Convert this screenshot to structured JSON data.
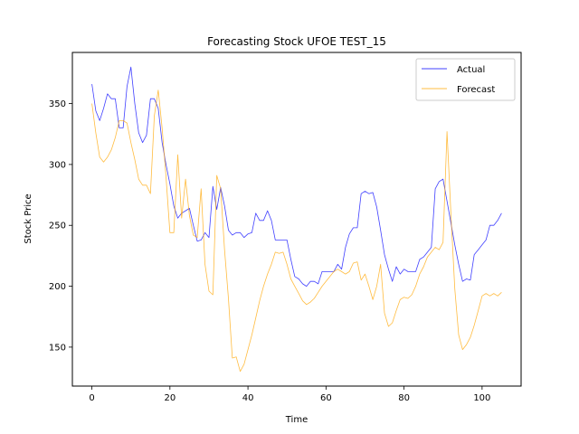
{
  "chart_data": {
    "type": "line",
    "title": "Forecasting Stock UFOE TEST_15",
    "xlabel": "Time",
    "ylabel": "Stock Price",
    "xlim": [
      -5,
      110
    ],
    "ylim": [
      118,
      392
    ],
    "xticks": [
      0,
      20,
      40,
      60,
      80,
      100
    ],
    "yticks": [
      150,
      200,
      250,
      300,
      350
    ],
    "grid": false,
    "legend": "top-right",
    "series": [
      {
        "name": "Actual",
        "color": "#0000ff",
        "x": [
          0,
          1,
          2,
          3,
          4,
          5,
          6,
          7,
          8,
          9,
          10,
          11,
          12,
          13,
          14,
          15,
          16,
          17,
          18,
          19,
          20,
          21,
          22,
          23,
          24,
          25,
          26,
          27,
          28,
          29,
          30,
          31,
          32,
          33,
          34,
          35,
          36,
          37,
          38,
          39,
          40,
          41,
          42,
          43,
          44,
          45,
          46,
          47,
          48,
          49,
          50,
          51,
          52,
          53,
          54,
          55,
          56,
          57,
          58,
          59,
          60,
          61,
          62,
          63,
          64,
          65,
          66,
          67,
          68,
          69,
          70,
          71,
          72,
          73,
          74,
          75,
          76,
          77,
          78,
          79,
          80,
          81,
          82,
          83,
          84,
          85,
          86,
          87,
          88,
          89,
          90,
          91,
          92,
          93,
          94,
          95,
          96,
          97,
          98,
          99,
          100,
          101,
          102,
          103,
          104,
          105
        ],
        "values": [
          366,
          344,
          336,
          346,
          358,
          354,
          354,
          330,
          330,
          364,
          380,
          350,
          326,
          318,
          324,
          354,
          354,
          346,
          318,
          300,
          284,
          266,
          256,
          260,
          262,
          264,
          250,
          237,
          238,
          244,
          240,
          282,
          263,
          281,
          266,
          246,
          242,
          244,
          244,
          240,
          243,
          244,
          260,
          254,
          254,
          262,
          254,
          238,
          238,
          238,
          238,
          222,
          208,
          206,
          202,
          200,
          204,
          204,
          202,
          212,
          212,
          212,
          212,
          218,
          214,
          232,
          243,
          248,
          248,
          276,
          278,
          276,
          277,
          265,
          246,
          226,
          214,
          204,
          216,
          210,
          214,
          212,
          212,
          212,
          222,
          224,
          228,
          232,
          280,
          286,
          288,
          270,
          252,
          234,
          218,
          204,
          206,
          205,
          226,
          230,
          234,
          238,
          250,
          250,
          254,
          260
        ]
      },
      {
        "name": "Forecast",
        "color": "#ffa500",
        "x": [
          0,
          1,
          2,
          3,
          4,
          5,
          6,
          7,
          8,
          9,
          10,
          11,
          12,
          13,
          14,
          15,
          16,
          17,
          18,
          19,
          20,
          21,
          22,
          23,
          24,
          25,
          26,
          27,
          28,
          29,
          30,
          31,
          32,
          33,
          34,
          35,
          36,
          37,
          38,
          39,
          40,
          41,
          42,
          43,
          44,
          45,
          46,
          47,
          48,
          49,
          50,
          51,
          52,
          53,
          54,
          55,
          56,
          57,
          58,
          59,
          60,
          61,
          62,
          63,
          64,
          65,
          66,
          67,
          68,
          69,
          70,
          71,
          72,
          73,
          74,
          75,
          76,
          77,
          78,
          79,
          80,
          81,
          82,
          83,
          84,
          85,
          86,
          87,
          88,
          89,
          90,
          91,
          92,
          93,
          94,
          95,
          96,
          97,
          98,
          99,
          100,
          101,
          102,
          103,
          104,
          105
        ],
        "values": [
          350,
          326,
          306,
          302,
          306,
          312,
          322,
          336,
          336,
          334,
          318,
          304,
          288,
          283,
          283,
          276,
          340,
          361,
          330,
          290,
          244,
          244,
          308,
          256,
          288,
          258,
          242,
          240,
          280,
          218,
          196,
          193,
          291,
          280,
          230,
          190,
          141,
          142,
          130,
          136,
          148,
          160,
          174,
          188,
          200,
          210,
          218,
          228,
          227,
          228,
          218,
          206,
          200,
          194,
          188,
          185,
          187,
          190,
          195,
          200,
          204,
          208,
          212,
          214,
          212,
          210,
          212,
          219,
          220,
          205,
          210,
          200,
          189,
          200,
          218,
          178,
          167,
          170,
          180,
          189,
          191,
          190,
          193,
          200,
          210,
          216,
          224,
          228,
          232,
          230,
          236,
          327,
          260,
          198,
          160,
          148,
          152,
          158,
          168,
          180,
          192,
          194,
          192,
          194,
          192,
          195
        ]
      }
    ]
  }
}
